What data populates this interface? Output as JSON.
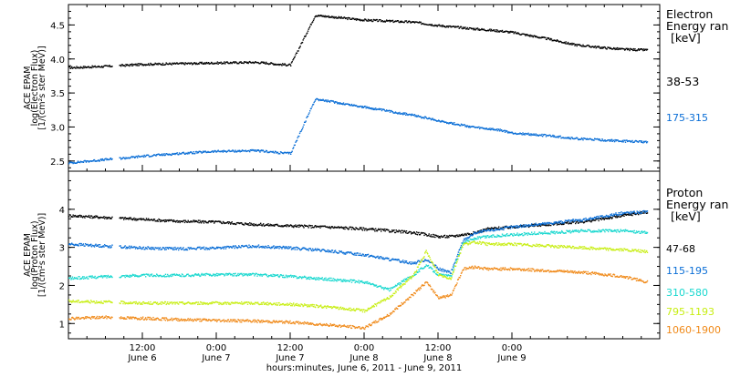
{
  "chart_data": [
    {
      "type": "scatter",
      "ylabel": [
        "ACE EPAM",
        "log(Electron Flux)",
        "[1/(cm²s ster MeV)]"
      ],
      "ylim": [
        2.35,
        4.8
      ],
      "yticks": [
        2.5,
        3.0,
        3.5,
        4.0,
        4.5
      ],
      "legend_title": [
        "Electron",
        "Energy ran",
        "[keV]"
      ],
      "series": [
        {
          "name": "38-53",
          "color": "#000000",
          "x": [
            0,
            6,
            10,
            12,
            18,
            24,
            30,
            32,
            34,
            36,
            40,
            48,
            56,
            60,
            66,
            70,
            72,
            78,
            82,
            86,
            90,
            94
          ],
          "y": [
            3.88,
            3.9,
            3.92,
            3.93,
            3.94,
            3.95,
            3.96,
            3.95,
            3.93,
            3.92,
            4.65,
            4.58,
            4.55,
            4.5,
            4.45,
            4.42,
            4.4,
            4.3,
            4.22,
            4.18,
            4.15,
            4.14
          ]
        },
        {
          "name": "175-315",
          "color": "#0a6ed6",
          "x": [
            0,
            6,
            10,
            12,
            18,
            24,
            30,
            32,
            34,
            36,
            40,
            48,
            56,
            60,
            66,
            70,
            72,
            78,
            82,
            86,
            90,
            94
          ],
          "y": [
            2.48,
            2.53,
            2.56,
            2.58,
            2.62,
            2.65,
            2.66,
            2.65,
            2.63,
            2.62,
            3.42,
            3.3,
            3.18,
            3.1,
            3.0,
            2.96,
            2.92,
            2.88,
            2.84,
            2.82,
            2.8,
            2.79
          ]
        }
      ]
    },
    {
      "type": "scatter",
      "ylabel": [
        "ACE EPAM",
        "log(Proton Flux)",
        "[1/(cm²s ster MeV)]"
      ],
      "ylim": [
        0.6,
        5.0
      ],
      "yticks": [
        1,
        2,
        3,
        4
      ],
      "legend_title": [
        "Proton",
        "Energy ran",
        "[keV]"
      ],
      "series": [
        {
          "name": "47-68",
          "color": "#000000",
          "x": [
            0,
            6,
            12,
            18,
            24,
            30,
            36,
            42,
            48,
            52,
            56,
            58,
            60,
            62,
            64,
            66,
            68,
            72,
            78,
            84,
            90,
            94
          ],
          "y": [
            3.85,
            3.8,
            3.75,
            3.7,
            3.68,
            3.62,
            3.58,
            3.55,
            3.5,
            3.45,
            3.4,
            3.35,
            3.3,
            3.3,
            3.35,
            3.4,
            3.5,
            3.55,
            3.62,
            3.7,
            3.85,
            3.95
          ]
        },
        {
          "name": "115-195",
          "color": "#0a6ed6",
          "x": [
            0,
            6,
            12,
            18,
            24,
            30,
            36,
            42,
            48,
            52,
            56,
            58,
            60,
            62,
            64,
            66,
            68,
            72,
            78,
            84,
            90,
            94
          ],
          "y": [
            3.1,
            3.05,
            3.0,
            2.98,
            3.0,
            3.05,
            3.0,
            2.92,
            2.82,
            2.7,
            2.6,
            2.7,
            2.45,
            2.35,
            3.2,
            3.4,
            3.45,
            3.55,
            3.65,
            3.75,
            3.92,
            3.95
          ]
        },
        {
          "name": "310-580",
          "color": "#19d8cf",
          "x": [
            0,
            6,
            12,
            18,
            24,
            30,
            36,
            42,
            48,
            52,
            56,
            58,
            60,
            62,
            64,
            66,
            68,
            72,
            78,
            84,
            90,
            94
          ],
          "y": [
            2.2,
            2.25,
            2.28,
            2.28,
            2.3,
            2.3,
            2.25,
            2.18,
            2.1,
            1.9,
            2.3,
            2.55,
            2.3,
            2.25,
            3.15,
            3.25,
            3.3,
            3.35,
            3.4,
            3.45,
            3.45,
            3.4
          ]
        },
        {
          "name": "795-1193",
          "color": "#c8ee14",
          "x": [
            0,
            6,
            12,
            18,
            24,
            30,
            36,
            42,
            48,
            52,
            56,
            58,
            60,
            62,
            64,
            66,
            68,
            72,
            78,
            84,
            90,
            94
          ],
          "y": [
            1.6,
            1.58,
            1.55,
            1.55,
            1.55,
            1.55,
            1.52,
            1.45,
            1.35,
            1.7,
            2.3,
            2.9,
            2.3,
            2.2,
            3.1,
            3.15,
            3.1,
            3.1,
            3.05,
            3.0,
            2.95,
            2.9
          ]
        },
        {
          "name": "1060-1900",
          "color": "#f08a1a",
          "x": [
            0,
            6,
            12,
            18,
            24,
            30,
            36,
            42,
            48,
            52,
            56,
            58,
            60,
            62,
            64,
            66,
            68,
            72,
            78,
            84,
            90,
            94
          ],
          "y": [
            1.15,
            1.18,
            1.15,
            1.12,
            1.1,
            1.08,
            1.05,
            0.98,
            0.9,
            1.25,
            1.8,
            2.1,
            1.7,
            1.75,
            2.45,
            2.5,
            2.45,
            2.45,
            2.4,
            2.35,
            2.25,
            2.1
          ]
        }
      ]
    }
  ],
  "x_axis": {
    "xlim": [
      0,
      96
    ],
    "ticks": [
      {
        "x": 12,
        "time": "12:00",
        "day": "June 6"
      },
      {
        "x": 24,
        "time": "0:00",
        "day": "June 7"
      },
      {
        "x": 36,
        "time": "12:00",
        "day": "June 7"
      },
      {
        "x": 48,
        "time": "0:00",
        "day": "June 8"
      },
      {
        "x": 60,
        "time": "12:00",
        "day": "June 8"
      },
      {
        "x": 72,
        "time": "0:00",
        "day": "June 9"
      }
    ],
    "xlabel": "hours:minutes, June  6, 2011 - June  9, 2011"
  }
}
